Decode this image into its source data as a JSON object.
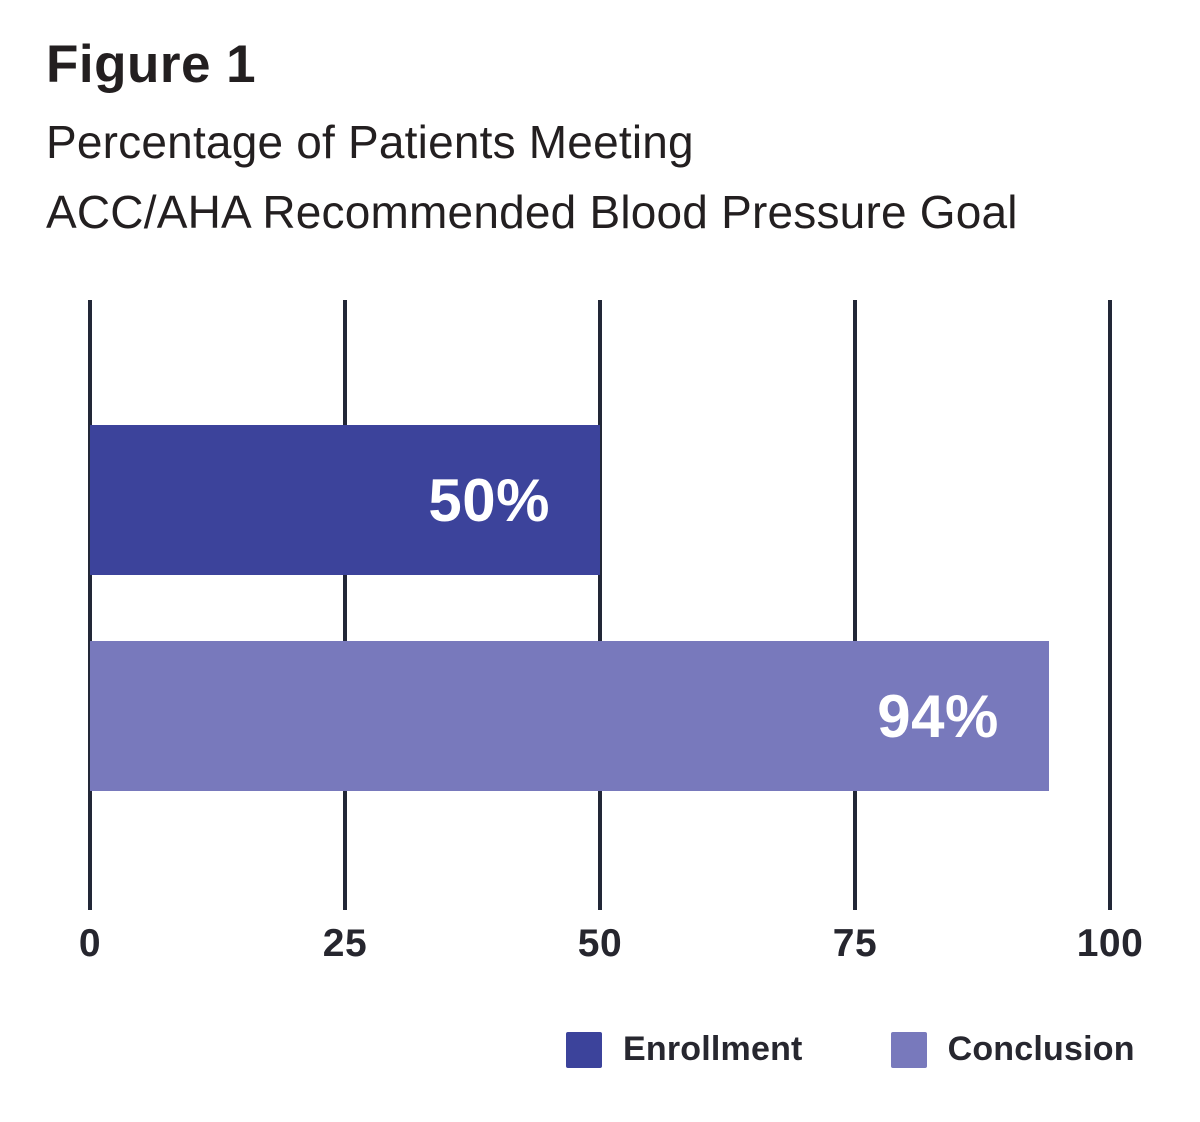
{
  "figure": {
    "label": "Figure 1",
    "title_line1": "Percentage of Patients Meeting",
    "title_line2": "ACC/AHA Recommended Blood Pressure Goal"
  },
  "chart_data": {
    "type": "bar",
    "orientation": "horizontal",
    "title": "Figure 1: Percentage of Patients Meeting ACC/AHA Recommended Blood Pressure Goal",
    "categories": [
      "Enrollment",
      "Conclusion"
    ],
    "values": [
      50,
      94
    ],
    "value_labels": [
      "50%",
      "94%"
    ],
    "series_colors": [
      "#3c439b",
      "#7879bc"
    ],
    "xlabel": "",
    "ylabel": "",
    "xlim": [
      0,
      100
    ],
    "x_ticks": [
      "0",
      "25",
      "50",
      "75",
      "100"
    ],
    "grid": "vertical gridlines at 0, 25, 50, 75, 100",
    "legend_position": "bottom"
  },
  "legend": {
    "items": [
      {
        "label": "Enrollment",
        "color": "#3c439b"
      },
      {
        "label": "Conclusion",
        "color": "#7879bc"
      }
    ]
  },
  "colors": {
    "background": "#ffffff",
    "title_text": "#231f20",
    "grid": "#222737",
    "tick_text": "#26262e",
    "bar_enrollment": "#3c439b",
    "bar_conclusion": "#7879bc",
    "bar_value_text": "#ffffff"
  }
}
